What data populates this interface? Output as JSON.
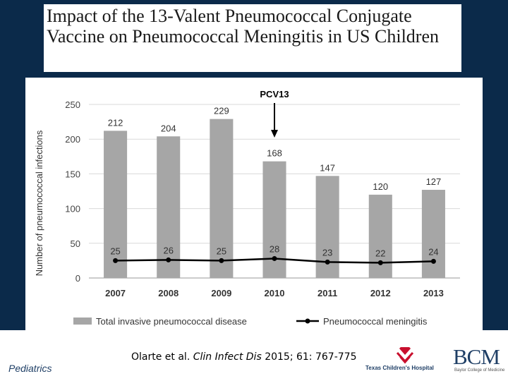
{
  "slide": {
    "title": "Impact of the 13-Valent Pneumococcal Conjugate Vaccine on Pneumococcal Meningitis in US Children",
    "footer_left": "Pediatrics",
    "citation_authors": "Olarte et al. ",
    "citation_journal": "Clin Infect Dis",
    "citation_rest": " 2015; 61: 767-775",
    "logo_tch": "Texas Children's Hospital",
    "logo_bcm": "BCM",
    "logo_bcm_sub": "Baylor College of Medicine",
    "colors": {
      "background": "#0b2a4a",
      "bar": "#a6a6a6",
      "line": "#000000"
    }
  },
  "chart_data": {
    "type": "bar",
    "title": "",
    "xlabel": "",
    "ylabel": "Number of pneumococcal infections",
    "categories": [
      "2007",
      "2008",
      "2009",
      "2010",
      "2011",
      "2012",
      "2013"
    ],
    "ylim": [
      0,
      250
    ],
    "yticks": [
      0,
      50,
      100,
      150,
      200,
      250
    ],
    "grid": true,
    "series": [
      {
        "name": "Total invasive pneumococcal disease",
        "kind": "bar",
        "values": [
          212,
          204,
          229,
          168,
          147,
          120,
          127
        ]
      },
      {
        "name": "Pneumococcal meningitis",
        "kind": "line",
        "values": [
          25,
          26,
          25,
          28,
          23,
          22,
          24
        ]
      }
    ],
    "annotation": {
      "text": "PCV13",
      "category": "2010"
    },
    "legend": "bottom"
  }
}
